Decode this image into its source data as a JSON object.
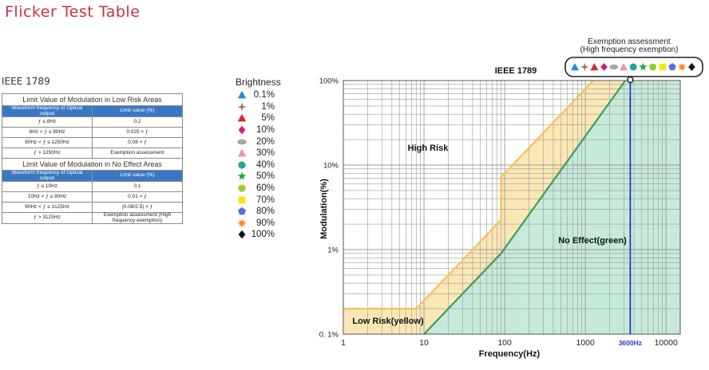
{
  "page": {
    "title": "Flicker Test Table",
    "standard": "IEEE 1789"
  },
  "table": {
    "low_risk": {
      "title": "Limit Value of Modulation in Low Risk Areas",
      "headers": [
        "Waveform frequency of Optical output",
        "Limit value (%)"
      ],
      "rows": [
        [
          "ƒ ≤ 8Hz",
          "0.2"
        ],
        [
          "8Hz < ƒ ≤ 90Hz",
          "0.025 × ƒ"
        ],
        [
          "90Hz < ƒ ≤ 1250Hz",
          "0.08 × ƒ"
        ],
        [
          "ƒ > 1250Hz",
          "Exemption assessment"
        ]
      ]
    },
    "no_effect": {
      "title": "Limit Value of Modulation in No Effect Areas",
      "headers": [
        "Waveform frequency of Optical output",
        "Limit value (%)"
      ],
      "rows": [
        [
          "ƒ ≤ 10Hz",
          "0.1"
        ],
        [
          "10Hz < ƒ ≤ 90Hz",
          "0.01 × ƒ"
        ],
        [
          "90Hz < ƒ ≤ 3125Hz",
          "(0.08/2.5) × ƒ"
        ],
        [
          "ƒ > 3125Hz",
          "Exemption assessment (High frequency exemption)"
        ]
      ]
    }
  },
  "brightness": {
    "title": "Brightness",
    "items": [
      {
        "label": "0.1%",
        "shape": "triangle",
        "color": "#1e90d6"
      },
      {
        "label": "1%",
        "shape": "star4",
        "color": "#a0705a"
      },
      {
        "label": "5%",
        "shape": "triangle",
        "color": "#d62828"
      },
      {
        "label": "10%",
        "shape": "diamond",
        "color": "#d81b7a"
      },
      {
        "label": "20%",
        "shape": "ellipse",
        "color": "#a8a8a8"
      },
      {
        "label": "30%",
        "shape": "triangle",
        "color": "#f48fb1"
      },
      {
        "label": "40%",
        "shape": "circle",
        "color": "#26a69a"
      },
      {
        "label": "50%",
        "shape": "star5",
        "color": "#1fa845"
      },
      {
        "label": "60%",
        "shape": "circle",
        "color": "#9acd32"
      },
      {
        "label": "70%",
        "shape": "square",
        "color": "#ffe11a"
      },
      {
        "label": "80%",
        "shape": "pentagon",
        "color": "#5b6ee1"
      },
      {
        "label": "90%",
        "shape": "star8",
        "color": "#ff8c1a"
      },
      {
        "label": "100%",
        "shape": "diamond",
        "color": "#111111"
      }
    ]
  },
  "chart_data": {
    "type": "area",
    "title": "IEEE 1789",
    "xlabel": "Frequency(Hz)",
    "ylabel": "Modulation(%)",
    "x_scale": "log",
    "y_scale": "log",
    "xlim": [
      1,
      15000
    ],
    "ylim": [
      0.1,
      100
    ],
    "x_ticks": [
      {
        "value": 1,
        "label": "1"
      },
      {
        "value": 10,
        "label": "10"
      },
      {
        "value": 100,
        "label": "100"
      },
      {
        "value": 1000,
        "label": "1000"
      },
      {
        "value": 10000,
        "label": "10000"
      }
    ],
    "y_ticks": [
      {
        "value": 0.1,
        "label": "0. 1%"
      },
      {
        "value": 1,
        "label": "1%"
      },
      {
        "value": 10,
        "label": "10%"
      },
      {
        "value": 100,
        "label": "100%"
      }
    ],
    "grid": true,
    "low_risk_boundary": [
      [
        1,
        0.2
      ],
      [
        8,
        0.2
      ],
      [
        90,
        2.25
      ],
      [
        90,
        7.2
      ],
      [
        1250,
        100
      ]
    ],
    "no_effect_boundary": [
      [
        10,
        0.1
      ],
      [
        90,
        0.9
      ],
      [
        3125,
        100
      ]
    ],
    "regions": [
      {
        "label": "High Risk",
        "color": "#ffffff"
      },
      {
        "label": "Low Risk(yellow)",
        "color": "#fbe7b5"
      },
      {
        "label": "No Effect(green)",
        "color": "#c6ead9"
      }
    ],
    "marker_line": {
      "x": 3600,
      "label": "3600Hz",
      "color": "#2b36c9"
    },
    "exemption": {
      "title_line1": "Exemption assessment",
      "title_line2": "(High frequency exemption)",
      "marker_x": 3600
    },
    "colors": {
      "low_line": "#f5c25a",
      "no_effect_line": "#3f9a63",
      "grid": "#9a9a9a"
    }
  }
}
